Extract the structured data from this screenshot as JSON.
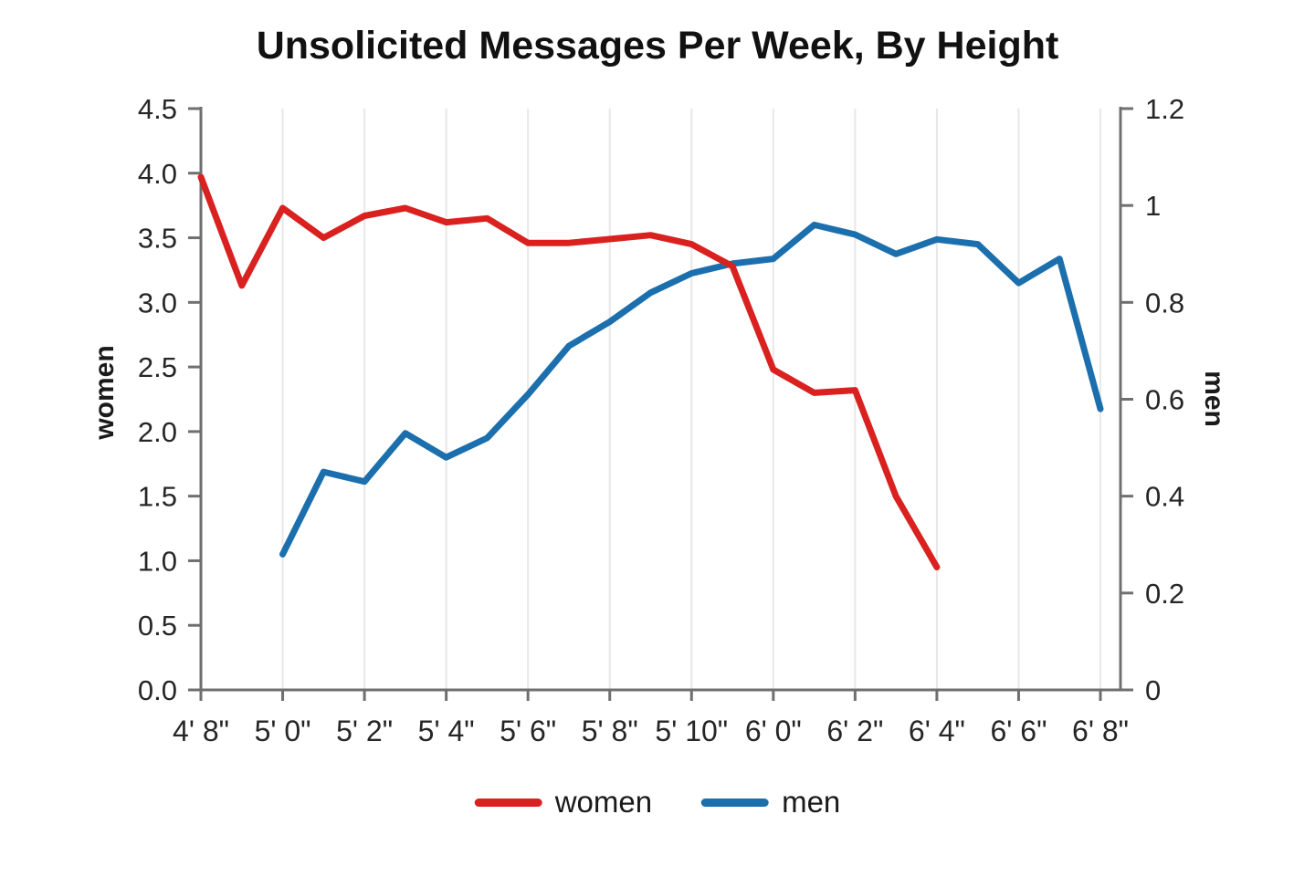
{
  "chart_data": {
    "type": "line",
    "title": "Unsolicited Messages Per Week, By Height",
    "x_axis": {
      "tick_labels": [
        "4' 8\"",
        "5' 0\"",
        "5' 2\"",
        "5' 4\"",
        "5' 6\"",
        "5' 8\"",
        "5' 10\"",
        "6' 0\"",
        "6' 2\"",
        "6' 4\"",
        "6' 6\"",
        "6' 8\""
      ],
      "labels_every_n_points": 2,
      "n_points": 23
    },
    "y_axis_left": {
      "label": "women",
      "tick_labels": [
        "4.5",
        "4.0",
        "3.5",
        "3.0",
        "2.5",
        "2.0",
        "1.5",
        "1.0",
        "0.5",
        "0.0"
      ],
      "range": [
        0,
        4.5
      ]
    },
    "y_axis_right": {
      "label": "men",
      "tick_labels": [
        "1.2",
        "1",
        "0.8",
        "0.6",
        "0.4",
        "0.2",
        "0"
      ],
      "range": [
        0,
        1.2
      ]
    },
    "series": [
      {
        "name": "women",
        "color": "#d92220",
        "axis": "left",
        "start_index": 0,
        "values": [
          3.97,
          3.13,
          3.73,
          3.5,
          3.67,
          3.73,
          3.62,
          3.65,
          3.46,
          3.46,
          3.49,
          3.52,
          3.45,
          3.28,
          2.48,
          2.3,
          2.32,
          1.5,
          0.95
        ]
      },
      {
        "name": "men",
        "color": "#1c6fad",
        "axis": "right",
        "start_index": 2,
        "values": [
          0.28,
          0.45,
          0.43,
          0.53,
          0.48,
          0.52,
          0.61,
          0.71,
          0.76,
          0.82,
          0.86,
          0.88,
          0.89,
          0.96,
          0.94,
          0.9,
          0.93,
          0.92,
          0.84,
          0.89,
          0.58
        ]
      }
    ],
    "legend": {
      "labels": [
        "women",
        "men"
      ],
      "position": "bottom"
    },
    "grid": "vertical-only",
    "colors": {
      "gridline": "#e8e8e8",
      "axis_line": "#6f6f6f",
      "tick_text": "#262626",
      "background": "#ffffff"
    }
  }
}
